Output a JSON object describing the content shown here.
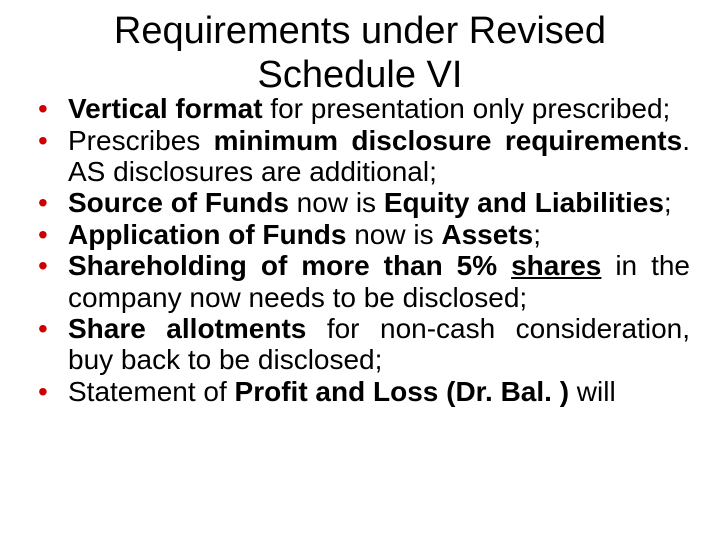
{
  "slide": {
    "title": "Requirements under Revised Schedule VI",
    "title_fontsize": 38,
    "title_color": "#000000",
    "background_color": "#ffffff",
    "bullet_color": "#cc0000",
    "body_fontsize": 28,
    "body_color": "#000000",
    "bullets": [
      {
        "runs": [
          {
            "text": "Vertical format",
            "bold": true
          },
          {
            "text": " for presentation only prescribed;"
          }
        ]
      },
      {
        "runs": [
          {
            "text": "Prescribes "
          },
          {
            "text": "minimum disclosure requirements",
            "bold": true
          },
          {
            "text": ". AS disclosures are additional;"
          }
        ]
      },
      {
        "runs": [
          {
            "text": "Source of Funds",
            "bold": true
          },
          {
            "text": " now is "
          },
          {
            "text": "Equity and Liabilities",
            "bold": true
          },
          {
            "text": ";"
          }
        ]
      },
      {
        "runs": [
          {
            "text": "Application of Funds",
            "bold": true
          },
          {
            "text": " now is "
          },
          {
            "text": "Assets",
            "bold": true
          },
          {
            "text": ";"
          }
        ]
      },
      {
        "runs": [
          {
            "text": "Shareholding of more than 5% ",
            "bold": true
          },
          {
            "text": "shares",
            "bold": true,
            "underline": true
          },
          {
            "text": " in the company now needs to be disclosed;"
          }
        ]
      },
      {
        "runs": [
          {
            "text": "Share allotments",
            "bold": true
          },
          {
            "text": " for non-cash consideration, buy back to be disclosed;"
          }
        ]
      },
      {
        "runs": [
          {
            "text": "Statement of "
          },
          {
            "text": "Profit and Loss (Dr. Bal. )",
            "bold": true
          },
          {
            "text": " will"
          }
        ]
      }
    ]
  }
}
